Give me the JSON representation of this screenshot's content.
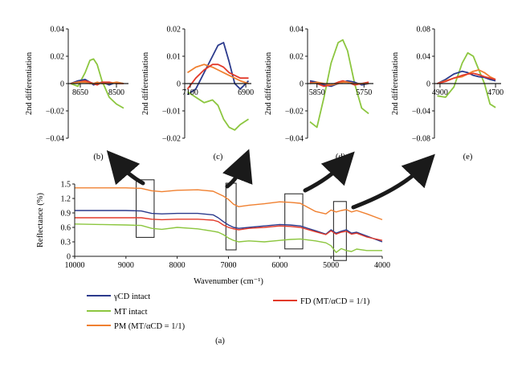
{
  "colors": {
    "gammaCD": "#2b3a8c",
    "MT": "#8cc63f",
    "PM": "#f08030",
    "FD": "#e23a2a",
    "axis": "#1a1a1a"
  },
  "legend": {
    "gammaCD": "γCD intact",
    "MT": "MT intact",
    "PM": "PM (MT/αCD = 1/1)",
    "FD": "FD (MT/αCD = 1/1)"
  },
  "chart_data": [
    {
      "panel": "(a)",
      "type": "line",
      "xlabel": "Wavenumber (cm⁻¹)",
      "ylabel": "Reflectance (%)",
      "xlim": [
        10000,
        4000
      ],
      "ylim": [
        0,
        1.5
      ],
      "xticks": [
        "10000",
        "9000",
        "8000",
        "7000",
        "6000",
        "5000",
        "4000"
      ],
      "yticks": [
        "0",
        "0.3",
        "0.6",
        "0.9",
        "1.2",
        "1.5"
      ],
      "x": [
        10000,
        9500,
        9000,
        8700,
        8500,
        8300,
        8000,
        7600,
        7300,
        7200,
        7100,
        7000,
        6900,
        6800,
        6600,
        6300,
        6000,
        5800,
        5600,
        5300,
        5100,
        5000,
        4900,
        4800,
        4700,
        4600,
        4500,
        4300,
        4000
      ],
      "series": [
        {
          "name": "PM (MT/αCD = 1/1)",
          "key": "PM",
          "values": [
            1.42,
            1.42,
            1.42,
            1.41,
            1.36,
            1.34,
            1.37,
            1.38,
            1.35,
            1.3,
            1.25,
            1.18,
            1.08,
            1.03,
            1.06,
            1.09,
            1.13,
            1.12,
            1.1,
            0.93,
            0.88,
            0.96,
            0.92,
            0.95,
            0.97,
            0.92,
            0.95,
            0.88,
            0.76
          ]
        },
        {
          "name": "γCD intact",
          "key": "gammaCD",
          "values": [
            0.95,
            0.95,
            0.95,
            0.94,
            0.89,
            0.88,
            0.89,
            0.89,
            0.86,
            0.8,
            0.72,
            0.65,
            0.6,
            0.58,
            0.6,
            0.63,
            0.66,
            0.65,
            0.63,
            0.53,
            0.46,
            0.55,
            0.48,
            0.52,
            0.55,
            0.48,
            0.5,
            0.42,
            0.3
          ]
        },
        {
          "name": "FD (MT/αCD = 1/1)",
          "key": "FD",
          "values": [
            0.8,
            0.8,
            0.8,
            0.8,
            0.77,
            0.76,
            0.77,
            0.77,
            0.75,
            0.72,
            0.65,
            0.6,
            0.57,
            0.55,
            0.58,
            0.6,
            0.63,
            0.62,
            0.6,
            0.51,
            0.45,
            0.53,
            0.46,
            0.5,
            0.52,
            0.46,
            0.48,
            0.4,
            0.33
          ]
        },
        {
          "name": "MT intact",
          "key": "MT",
          "values": [
            0.67,
            0.66,
            0.65,
            0.64,
            0.58,
            0.56,
            0.6,
            0.57,
            0.52,
            0.5,
            0.45,
            0.38,
            0.33,
            0.3,
            0.32,
            0.3,
            0.33,
            0.35,
            0.36,
            0.32,
            0.28,
            0.22,
            0.08,
            0.16,
            0.12,
            0.1,
            0.15,
            0.12,
            0.12
          ]
        }
      ],
      "highlight_regions": [
        [
          8800,
          8450
        ],
        [
          7050,
          6850
        ],
        [
          5900,
          5550
        ],
        [
          4950,
          4700
        ]
      ]
    },
    {
      "panel": "(b)",
      "type": "line",
      "ylabel": "2nd differentiation",
      "xlim": [
        8700,
        8450
      ],
      "ylim": [
        -0.04,
        0.04
      ],
      "xticks": [
        "8650",
        "8500"
      ],
      "yticks": [
        "0.04",
        "0.02",
        "0",
        "−0.02",
        "−0.04"
      ],
      "x": [
        8690,
        8660,
        8630,
        8610,
        8595,
        8580,
        8560,
        8530,
        8500,
        8470
      ],
      "series": [
        {
          "key": "MT",
          "values": [
            0.0,
            -0.002,
            0.008,
            0.017,
            0.018,
            0.014,
            0.002,
            -0.01,
            -0.015,
            -0.018
          ]
        },
        {
          "key": "gammaCD",
          "values": [
            0.0,
            0.002,
            0.003,
            0.001,
            -0.001,
            0.0,
            0.001,
            -0.001,
            0.001,
            0.0
          ]
        },
        {
          "key": "FD",
          "values": [
            0.0,
            0.001,
            0.002,
            0.001,
            0.0,
            -0.001,
            0.001,
            0.001,
            0.0,
            0.0
          ]
        },
        {
          "key": "PM",
          "values": [
            0.0,
            0.001,
            0.001,
            0.0,
            0.0,
            0.001,
            0.0,
            0.0,
            0.001,
            0.0
          ]
        }
      ]
    },
    {
      "panel": "(c)",
      "type": "line",
      "ylabel": "2nd differentiation",
      "xlim": [
        7120,
        6880
      ],
      "ylim": [
        -0.02,
        0.02
      ],
      "xticks": [
        "7100",
        "6900"
      ],
      "yticks": [
        "0.02",
        "0.01",
        "0",
        "−0.01",
        "−0.02"
      ],
      "x": [
        7110,
        7080,
        7050,
        7020,
        7000,
        6980,
        6960,
        6940,
        6920,
        6890
      ],
      "series": [
        {
          "key": "gammaCD",
          "values": [
            -0.004,
            -0.002,
            0.004,
            0.01,
            0.014,
            0.015,
            0.008,
            0.0,
            -0.002,
            0.001
          ]
        },
        {
          "key": "PM",
          "values": [
            0.004,
            0.006,
            0.007,
            0.006,
            0.005,
            0.004,
            0.003,
            0.002,
            0.001,
            0.0
          ]
        },
        {
          "key": "FD",
          "values": [
            -0.002,
            0.002,
            0.005,
            0.007,
            0.007,
            0.006,
            0.004,
            0.003,
            0.002,
            0.002
          ]
        },
        {
          "key": "MT",
          "values": [
            -0.003,
            -0.005,
            -0.007,
            -0.006,
            -0.008,
            -0.013,
            -0.016,
            -0.017,
            -0.015,
            -0.013
          ]
        }
      ]
    },
    {
      "panel": "(d)",
      "type": "line",
      "ylabel": "2nd differentiation",
      "xlim": [
        5870,
        5730
      ],
      "ylim": [
        -0.04,
        0.04
      ],
      "xticks": [
        "5850",
        "5750"
      ],
      "yticks": [
        "0.04",
        "0.02",
        "0",
        "−0.02",
        "−0.04"
      ],
      "x": [
        5865,
        5850,
        5835,
        5820,
        5805,
        5795,
        5785,
        5770,
        5755,
        5740
      ],
      "series": [
        {
          "key": "MT",
          "values": [
            -0.028,
            -0.032,
            -0.01,
            0.015,
            0.03,
            0.032,
            0.024,
            0.0,
            -0.018,
            -0.022
          ]
        },
        {
          "key": "gammaCD",
          "values": [
            0.002,
            0.001,
            -0.001,
            -0.002,
            0.0,
            0.001,
            0.002,
            0.001,
            -0.001,
            0.0
          ]
        },
        {
          "key": "FD",
          "values": [
            0.001,
            0.0,
            -0.002,
            -0.001,
            0.001,
            0.002,
            0.001,
            -0.001,
            0.0,
            0.001
          ]
        },
        {
          "key": "PM",
          "values": [
            0.0,
            0.001,
            0.0,
            -0.001,
            0.0,
            0.001,
            0.001,
            0.0,
            0.0,
            0.0
          ]
        }
      ]
    },
    {
      "panel": "(e)",
      "type": "line",
      "ylabel": "2nd differentiation",
      "xlim": [
        4920,
        4680
      ],
      "ylim": [
        -0.08,
        0.08
      ],
      "xticks": [
        "4900",
        "4700"
      ],
      "yticks": [
        "0.08",
        "0.04",
        "0",
        "−0.04",
        "−0.08"
      ],
      "x": [
        4910,
        4880,
        4850,
        4820,
        4800,
        4780,
        4760,
        4740,
        4720,
        4700
      ],
      "series": [
        {
          "key": "MT",
          "values": [
            -0.018,
            -0.02,
            -0.005,
            0.03,
            0.045,
            0.04,
            0.02,
            0.0,
            -0.03,
            -0.035
          ]
        },
        {
          "key": "gammaCD",
          "values": [
            0.0,
            0.006,
            0.014,
            0.018,
            0.016,
            0.012,
            0.01,
            0.009,
            0.006,
            0.004
          ]
        },
        {
          "key": "PM",
          "values": [
            0.0,
            0.004,
            0.008,
            0.01,
            0.014,
            0.018,
            0.02,
            0.016,
            0.01,
            0.006
          ]
        },
        {
          "key": "FD",
          "values": [
            0.0,
            0.003,
            0.008,
            0.012,
            0.014,
            0.015,
            0.013,
            0.01,
            0.008,
            0.006
          ]
        }
      ]
    }
  ]
}
